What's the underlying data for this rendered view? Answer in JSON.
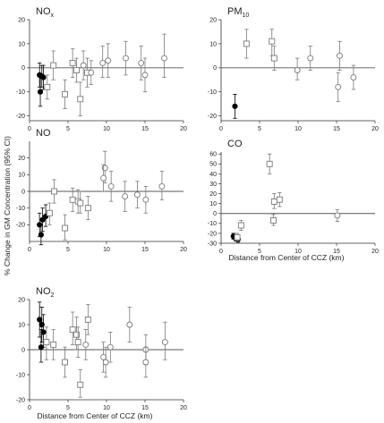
{
  "figure": {
    "ylabel": "% Change in GM Concentration (95% CI)",
    "xlabel": "Distance from Center of CCZ (km)"
  },
  "chart_data": [
    {
      "id": "nox",
      "type": "scatter",
      "title": "NO",
      "title_sub": "x",
      "xlabel": "",
      "ylabel": "",
      "xlim": [
        0,
        20
      ],
      "ylim": [
        -22,
        20
      ],
      "xticks": [
        "0",
        "5",
        "10",
        "15",
        "20"
      ],
      "yticks": [
        "-20",
        "-10",
        "0",
        "10",
        "20"
      ],
      "yticks_values": [
        -20,
        -10,
        0,
        10,
        20
      ],
      "series": [
        {
          "marker": "filled-circle",
          "color": "#000000",
          "points": [
            {
              "x": 1.3,
              "y": -3,
              "lo": -8,
              "hi": 2
            },
            {
              "x": 1.6,
              "y": -3.5,
              "lo": -8,
              "hi": 1
            },
            {
              "x": 1.4,
              "y": -10,
              "lo": -16,
              "hi": -4
            },
            {
              "x": 1.8,
              "y": -4,
              "lo": -9,
              "hi": 1
            }
          ]
        },
        {
          "marker": "open-square",
          "color": "#7a7a7a",
          "points": [
            {
              "x": 2.3,
              "y": -8,
              "lo": -13,
              "hi": -3
            },
            {
              "x": 3.1,
              "y": 1,
              "lo": -5,
              "hi": 7
            },
            {
              "x": 4.6,
              "y": -11,
              "lo": -17,
              "hi": -5
            },
            {
              "x": 5.6,
              "y": 2,
              "lo": -4,
              "hi": 8
            },
            {
              "x": 6.1,
              "y": -1,
              "lo": -6,
              "hi": 4
            },
            {
              "x": 6.6,
              "y": -13,
              "lo": -20,
              "hi": -6
            },
            {
              "x": 7.5,
              "y": -2,
              "lo": -8,
              "hi": 4
            }
          ]
        },
        {
          "marker": "open-circle",
          "color": "#7a7a7a",
          "points": [
            {
              "x": 7.0,
              "y": 1,
              "lo": -5,
              "hi": 7
            },
            {
              "x": 8.0,
              "y": -2,
              "lo": -7,
              "hi": 3
            },
            {
              "x": 9.5,
              "y": 2,
              "lo": -4,
              "hi": 9
            },
            {
              "x": 10.2,
              "y": 3,
              "lo": -4,
              "hi": 10
            },
            {
              "x": 12.5,
              "y": 4,
              "lo": -3,
              "hi": 11
            },
            {
              "x": 15.0,
              "y": -3,
              "lo": -10,
              "hi": 4
            },
            {
              "x": 14.5,
              "y": 2,
              "lo": -5,
              "hi": 9
            },
            {
              "x": 17.5,
              "y": 4,
              "lo": -4,
              "hi": 14
            }
          ]
        }
      ]
    },
    {
      "id": "pm10",
      "type": "scatter",
      "title": "PM",
      "title_sub": "10",
      "xlabel": "",
      "ylabel": "",
      "xlim": [
        0,
        20
      ],
      "ylim": [
        -22,
        20
      ],
      "xticks": [
        "0",
        "5",
        "10",
        "15",
        "20"
      ],
      "yticks": [
        "-20",
        "-10",
        "0",
        "10",
        "20"
      ],
      "yticks_values": [
        -20,
        -10,
        0,
        10,
        20
      ],
      "series": [
        {
          "marker": "filled-circle",
          "color": "#000000",
          "points": [
            {
              "x": 1.8,
              "y": -16,
              "lo": -21,
              "hi": -11
            }
          ]
        },
        {
          "marker": "open-square",
          "color": "#7a7a7a",
          "points": [
            {
              "x": 3.3,
              "y": 10,
              "lo": 4,
              "hi": 16
            },
            {
              "x": 6.6,
              "y": 11,
              "lo": 5,
              "hi": 16
            },
            {
              "x": 6.9,
              "y": 4,
              "lo": -1,
              "hi": 9
            }
          ]
        },
        {
          "marker": "open-circle",
          "color": "#7a7a7a",
          "points": [
            {
              "x": 9.9,
              "y": -1,
              "lo": -5,
              "hi": 4
            },
            {
              "x": 11.6,
              "y": 4,
              "lo": -1,
              "hi": 9
            },
            {
              "x": 15.2,
              "y": -8,
              "lo": -14,
              "hi": -2
            },
            {
              "x": 15.4,
              "y": 5,
              "lo": -1,
              "hi": 11
            },
            {
              "x": 17.2,
              "y": -4,
              "lo": -9,
              "hi": 1
            }
          ]
        }
      ]
    },
    {
      "id": "no",
      "type": "scatter",
      "title": "NO",
      "title_sub": "",
      "xlabel": "",
      "ylabel": "",
      "xlim": [
        0,
        20
      ],
      "ylim": [
        -30,
        30
      ],
      "xticks": [
        "0",
        "5",
        "10",
        "15",
        "20"
      ],
      "yticks": [
        "-20",
        "-10",
        "0",
        "10",
        "20"
      ],
      "yticks_values": [
        -20,
        -10,
        0,
        10,
        20
      ],
      "series": [
        {
          "marker": "filled-circle",
          "color": "#000000",
          "points": [
            {
              "x": 1.3,
              "y": -20,
              "lo": -27,
              "hi": -13
            },
            {
              "x": 1.5,
              "y": -26,
              "lo": -32,
              "hi": -20
            },
            {
              "x": 1.7,
              "y": -17,
              "lo": -24,
              "hi": -10
            },
            {
              "x": 2.1,
              "y": -15,
              "lo": -21,
              "hi": -8
            }
          ]
        },
        {
          "marker": "open-square",
          "color": "#7a7a7a",
          "points": [
            {
              "x": 2.6,
              "y": -13,
              "lo": -20,
              "hi": -7
            },
            {
              "x": 3.2,
              "y": 0,
              "lo": -7,
              "hi": 7
            },
            {
              "x": 4.6,
              "y": -22,
              "lo": -29,
              "hi": -14
            },
            {
              "x": 5.6,
              "y": -5,
              "lo": -12,
              "hi": 2
            },
            {
              "x": 6.3,
              "y": -6,
              "lo": -13,
              "hi": 1
            },
            {
              "x": 6.6,
              "y": -7,
              "lo": -13,
              "hi": 0
            },
            {
              "x": 7.6,
              "y": -10,
              "lo": -17,
              "hi": -3
            }
          ]
        },
        {
          "marker": "open-circle",
          "color": "#7a7a7a",
          "points": [
            {
              "x": 9.8,
              "y": 14,
              "lo": 5,
              "hi": 24
            },
            {
              "x": 9.6,
              "y": 8,
              "lo": 0,
              "hi": 16
            },
            {
              "x": 10.6,
              "y": 3,
              "lo": -6,
              "hi": 12
            },
            {
              "x": 12.4,
              "y": -3,
              "lo": -12,
              "hi": 6
            },
            {
              "x": 14.0,
              "y": -2,
              "lo": -10,
              "hi": 6
            },
            {
              "x": 15.1,
              "y": -5,
              "lo": -13,
              "hi": 3
            },
            {
              "x": 17.2,
              "y": 3,
              "lo": -5,
              "hi": 12
            }
          ]
        }
      ]
    },
    {
      "id": "co",
      "type": "scatter",
      "title": "CO",
      "title_sub": "",
      "xlabel": "Distance from Center of CCZ (km)",
      "ylabel": "",
      "xlim": [
        0,
        20
      ],
      "ylim": [
        -30,
        62
      ],
      "xticks": [
        "0",
        "5",
        "10",
        "15",
        "20"
      ],
      "yticks": [
        "-30",
        "-20",
        "-10",
        "0",
        "10",
        "20",
        "30",
        "40",
        "50",
        "60"
      ],
      "yticks_values": [
        -30,
        -20,
        -10,
        0,
        10,
        20,
        30,
        40,
        50,
        60
      ],
      "series": [
        {
          "marker": "filled-circle",
          "color": "#000000",
          "points": [
            {
              "x": 1.6,
              "y": -23,
              "lo": -26,
              "hi": -20
            },
            {
              "x": 1.9,
              "y": -25,
              "lo": -28,
              "hi": -22
            },
            {
              "x": 2.2,
              "y": -26,
              "lo": -29,
              "hi": -23
            }
          ]
        },
        {
          "marker": "open-square",
          "color": "#7a7a7a",
          "points": [
            {
              "x": 2.1,
              "y": -24,
              "lo": -28,
              "hi": -20
            },
            {
              "x": 2.6,
              "y": -12,
              "lo": -17,
              "hi": -7
            },
            {
              "x": 6.3,
              "y": 50,
              "lo": 40,
              "hi": 60
            },
            {
              "x": 6.9,
              "y": 12,
              "lo": 5,
              "hi": 20
            },
            {
              "x": 6.8,
              "y": -7,
              "lo": -12,
              "hi": -1
            },
            {
              "x": 7.6,
              "y": 14,
              "lo": 7,
              "hi": 21
            }
          ]
        },
        {
          "marker": "open-circle",
          "color": "#7a7a7a",
          "points": [
            {
              "x": 15.1,
              "y": -2,
              "lo": -8,
              "hi": 4
            }
          ]
        }
      ]
    },
    {
      "id": "no2",
      "type": "scatter",
      "title": "NO",
      "title_sub": "2",
      "xlabel": "Distance from Center of CCZ (km)",
      "ylabel": "",
      "xlim": [
        0,
        20
      ],
      "ylim": [
        -20,
        20
      ],
      "xticks": [
        "0",
        "5",
        "10",
        "15",
        "20"
      ],
      "yticks": [
        "-20",
        "-10",
        "0",
        "10",
        "20"
      ],
      "yticks_values": [
        -20,
        -10,
        0,
        10,
        20
      ],
      "series": [
        {
          "marker": "filled-circle",
          "color": "#000000",
          "points": [
            {
              "x": 1.3,
              "y": 12,
              "lo": 5,
              "hi": 19
            },
            {
              "x": 1.5,
              "y": 1,
              "lo": -5,
              "hi": 8
            },
            {
              "x": 1.8,
              "y": 7,
              "lo": 1,
              "hi": 14
            },
            {
              "x": 1.6,
              "y": 10,
              "lo": 3,
              "hi": 17
            }
          ]
        },
        {
          "marker": "open-square",
          "color": "#7a7a7a",
          "points": [
            {
              "x": 2.2,
              "y": 3,
              "lo": -4,
              "hi": 9
            },
            {
              "x": 3.1,
              "y": 2,
              "lo": -4,
              "hi": 8
            },
            {
              "x": 4.6,
              "y": -5,
              "lo": -11,
              "hi": 1
            },
            {
              "x": 5.6,
              "y": 8,
              "lo": 2,
              "hi": 15
            },
            {
              "x": 6.1,
              "y": 6,
              "lo": 0,
              "hi": 13
            },
            {
              "x": 6.3,
              "y": 3,
              "lo": -3,
              "hi": 9
            },
            {
              "x": 6.6,
              "y": -14,
              "lo": -19,
              "hi": -8
            },
            {
              "x": 7.6,
              "y": 12,
              "lo": 6,
              "hi": 18
            }
          ]
        },
        {
          "marker": "open-circle",
          "color": "#7a7a7a",
          "points": [
            {
              "x": 7.3,
              "y": 2,
              "lo": -4,
              "hi": 8
            },
            {
              "x": 9.6,
              "y": -3,
              "lo": -9,
              "hi": 3
            },
            {
              "x": 9.9,
              "y": -5,
              "lo": -11,
              "hi": 1
            },
            {
              "x": 10.5,
              "y": 1,
              "lo": -5,
              "hi": 7
            },
            {
              "x": 13.0,
              "y": 10,
              "lo": 3,
              "hi": 17
            },
            {
              "x": 15.1,
              "y": 0,
              "lo": -6,
              "hi": 6
            },
            {
              "x": 15.1,
              "y": -5,
              "lo": -11,
              "hi": 1
            },
            {
              "x": 17.6,
              "y": 3,
              "lo": -4,
              "hi": 11
            }
          ]
        }
      ]
    }
  ]
}
